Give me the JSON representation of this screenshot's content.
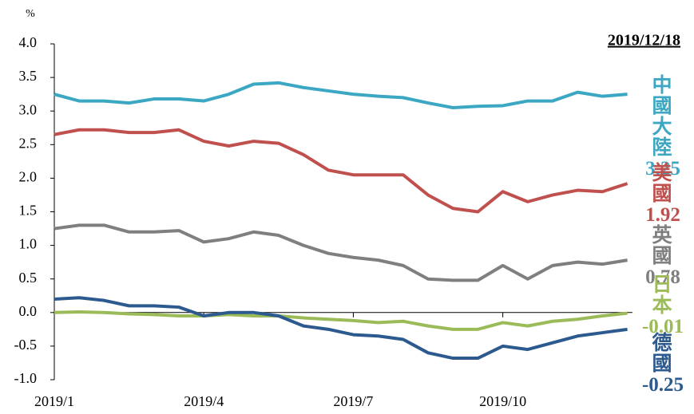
{
  "chart_data": {
    "type": "line",
    "y_unit": "%",
    "date": "2019/12/18",
    "x": [
      0,
      0.5,
      1,
      1.5,
      2,
      2.5,
      3,
      3.5,
      4,
      4.5,
      5,
      5.5,
      6,
      6.5,
      7,
      7.5,
      8,
      8.5,
      9,
      9.5,
      10,
      10.5,
      11,
      11.5
    ],
    "xlim": [
      0,
      11.6
    ],
    "xticks": [
      {
        "value": 0,
        "label": "2019/1"
      },
      {
        "value": 3,
        "label": "2019/4"
      },
      {
        "value": 6,
        "label": "2019/7"
      },
      {
        "value": 9,
        "label": "2019/10"
      }
    ],
    "ylim": [
      -1,
      4
    ],
    "yticks": [
      {
        "value": 4,
        "label": "4.0"
      },
      {
        "value": 3.5,
        "label": "3.5"
      },
      {
        "value": 3,
        "label": "3.0"
      },
      {
        "value": 2.5,
        "label": "2.5"
      },
      {
        "value": 2,
        "label": "2.0"
      },
      {
        "value": 1.5,
        "label": "1.5"
      },
      {
        "value": 1,
        "label": "1.0"
      },
      {
        "value": 0.5,
        "label": "0.5"
      },
      {
        "value": 0,
        "label": "0.0"
      },
      {
        "value": -0.5,
        "label": "-0.5"
      },
      {
        "value": -1,
        "label": "-1.0"
      }
    ],
    "series": [
      {
        "name": "中國大陸",
        "color": "#3ba7c2",
        "values": [
          3.25,
          3.15,
          3.15,
          3.12,
          3.18,
          3.18,
          3.15,
          3.25,
          3.4,
          3.42,
          3.35,
          3.3,
          3.25,
          3.22,
          3.2,
          3.12,
          3.05,
          3.07,
          3.08,
          3.15,
          3.15,
          3.28,
          3.22,
          3.25
        ]
      },
      {
        "name": "美國",
        "color": "#c0504d",
        "values": [
          2.65,
          2.72,
          2.72,
          2.68,
          2.68,
          2.72,
          2.55,
          2.48,
          2.55,
          2.52,
          2.35,
          2.12,
          2.05,
          2.05,
          2.05,
          1.75,
          1.55,
          1.5,
          1.8,
          1.65,
          1.75,
          1.82,
          1.8,
          1.92
        ]
      },
      {
        "name": "英國",
        "color": "#7f7f7f",
        "values": [
          1.25,
          1.3,
          1.3,
          1.2,
          1.2,
          1.22,
          1.05,
          1.1,
          1.2,
          1.15,
          1.0,
          0.88,
          0.82,
          0.78,
          0.7,
          0.5,
          0.48,
          0.48,
          0.7,
          0.5,
          0.7,
          0.75,
          0.72,
          0.78
        ]
      },
      {
        "name": "日本",
        "color": "#9bbb59",
        "values": [
          0.0,
          0.01,
          0.0,
          -0.02,
          -0.03,
          -0.05,
          -0.05,
          -0.03,
          -0.05,
          -0.05,
          -0.08,
          -0.1,
          -0.12,
          -0.15,
          -0.13,
          -0.2,
          -0.25,
          -0.25,
          -0.15,
          -0.2,
          -0.13,
          -0.1,
          -0.05,
          -0.01
        ]
      },
      {
        "name": "德國",
        "color": "#2c5a8f",
        "values": [
          0.2,
          0.22,
          0.18,
          0.1,
          0.1,
          0.08,
          -0.05,
          0.0,
          0.0,
          -0.05,
          -0.2,
          -0.25,
          -0.33,
          -0.35,
          -0.4,
          -0.6,
          -0.68,
          -0.68,
          -0.5,
          -0.55,
          -0.45,
          -0.35,
          -0.3,
          -0.25
        ]
      }
    ]
  }
}
